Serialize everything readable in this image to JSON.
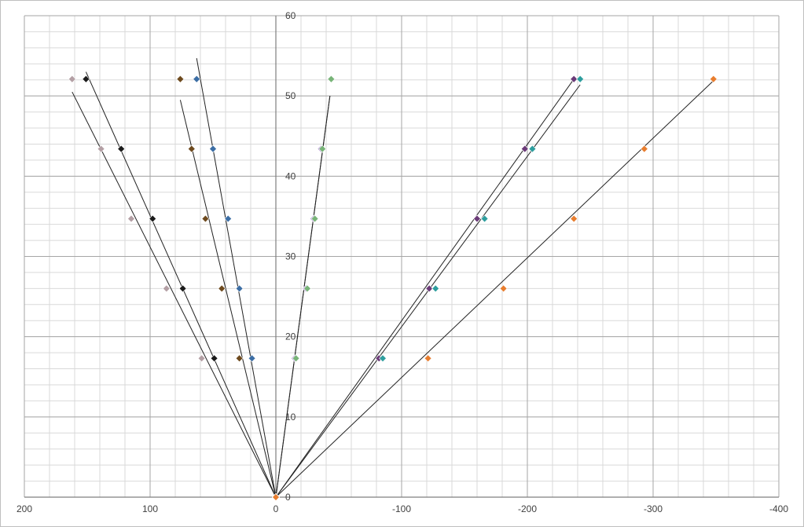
{
  "chart_data": {
    "type": "scatter",
    "title": "",
    "xlabel": "",
    "ylabel": "",
    "xlim": [
      200,
      -400
    ],
    "ylim": [
      0,
      60
    ],
    "x_reversed": true,
    "grid": true,
    "legend": "none",
    "x_major_ticks": [
      200,
      100,
      0,
      -100,
      -200,
      -300,
      -400
    ],
    "x_tick_labels": [
      "200",
      "100",
      "0",
      "-100",
      "-200",
      "-300",
      "-400"
    ],
    "y_major_ticks": [
      0,
      10,
      20,
      30,
      40,
      50,
      60
    ],
    "y_tick_labels": [
      "0",
      "10",
      "20",
      "30",
      "40",
      "50",
      "60"
    ],
    "series": [
      {
        "color": "#b4a0a5",
        "points": [
          [
            0,
            0
          ],
          [
            59,
            17.3
          ],
          [
            87,
            26.0
          ],
          [
            115,
            34.7
          ],
          [
            139,
            43.4
          ],
          [
            162,
            52.1
          ]
        ],
        "trendline": [
          [
            0,
            0
          ],
          [
            162,
            50.5
          ]
        ]
      },
      {
        "color": "#1a1a1a",
        "points": [
          [
            0,
            0
          ],
          [
            49,
            17.3
          ],
          [
            74,
            26.0
          ],
          [
            98,
            34.7
          ],
          [
            123,
            43.4
          ],
          [
            151,
            52.1
          ]
        ],
        "trendline": [
          [
            0,
            0
          ],
          [
            151,
            53.0
          ]
        ]
      },
      {
        "color": "#6e4a1e",
        "points": [
          [
            0,
            0
          ],
          [
            29,
            17.3
          ],
          [
            43,
            26.0
          ],
          [
            56,
            34.7
          ],
          [
            67,
            43.4
          ],
          [
            76,
            52.1
          ]
        ],
        "trendline": [
          [
            0,
            0
          ],
          [
            76,
            49.5
          ]
        ]
      },
      {
        "color": "#3c6ea5",
        "points": [
          [
            0,
            0
          ],
          [
            19,
            17.3
          ],
          [
            29,
            26.0
          ],
          [
            38,
            34.7
          ],
          [
            50,
            43.4
          ],
          [
            63,
            52.1
          ]
        ],
        "trendline": [
          [
            0,
            0
          ],
          [
            63,
            54.7
          ]
        ]
      },
      {
        "color": "#a07cc8",
        "points": [
          [
            0,
            0
          ],
          [
            -15,
            17.3
          ],
          [
            -24,
            26.0
          ],
          [
            -30,
            34.7
          ],
          [
            -36,
            43.4
          ],
          [
            -44,
            52.1
          ]
        ],
        "trendline": [
          [
            0,
            0
          ],
          [
            -43,
            50.0
          ]
        ]
      },
      {
        "color": "#78b478",
        "points": [
          [
            0,
            0
          ],
          [
            -16,
            17.3
          ],
          [
            -25,
            26.0
          ],
          [
            -31,
            34.7
          ],
          [
            -37,
            43.4
          ],
          [
            -44,
            52.1
          ]
        ],
        "trendline": [
          [
            0,
            0
          ],
          [
            -43,
            50.0
          ]
        ]
      },
      {
        "color": "#6b3a78",
        "points": [
          [
            0,
            0
          ],
          [
            -82,
            17.3
          ],
          [
            -122,
            26.0
          ],
          [
            -160,
            34.7
          ],
          [
            -198,
            43.4
          ],
          [
            -237,
            52.1
          ]
        ],
        "trendline": [
          [
            0,
            0
          ],
          [
            -237,
            52.1
          ]
        ]
      },
      {
        "color": "#2e9e9e",
        "points": [
          [
            0,
            0
          ],
          [
            -85,
            17.3
          ],
          [
            -127,
            26.0
          ],
          [
            -166,
            34.7
          ],
          [
            -204,
            43.4
          ],
          [
            -242,
            52.1
          ]
        ],
        "trendline": [
          [
            0,
            0
          ],
          [
            -242,
            51.4
          ]
        ]
      },
      {
        "color": "#e87d2e",
        "points": [
          [
            0,
            0
          ],
          [
            -121,
            17.3
          ],
          [
            -181,
            26.0
          ],
          [
            -237,
            34.7
          ],
          [
            -293,
            43.4
          ],
          [
            -348,
            52.1
          ]
        ],
        "trendline": [
          [
            0,
            0
          ],
          [
            -348,
            51.9
          ]
        ]
      }
    ]
  }
}
